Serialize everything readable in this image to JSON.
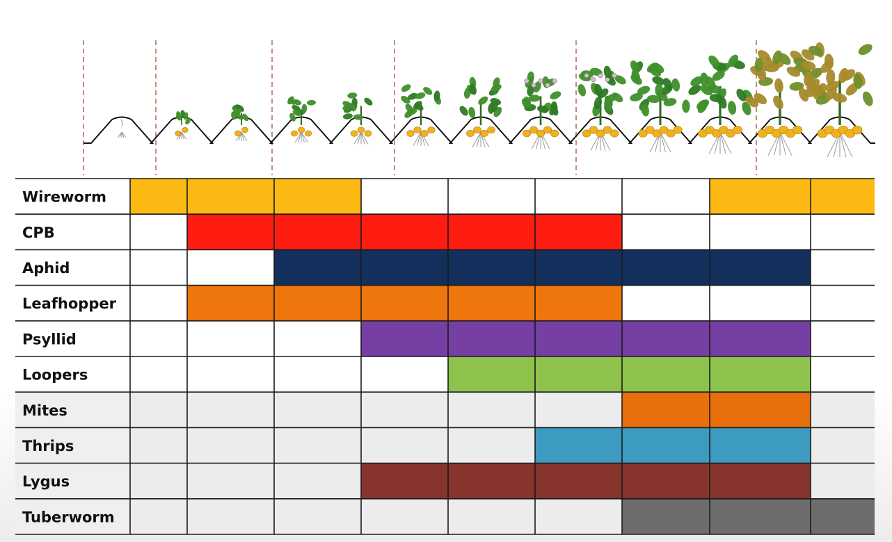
{
  "chart_data": {
    "type": "table",
    "pests": [
      "Wireworm",
      "CPB",
      "Aphid",
      "Leafhopper",
      "Psyllid",
      "Loopers",
      "Mites",
      "Thrips",
      "Lygus",
      "Tuberworm"
    ],
    "stage_columns": 9,
    "activity": [
      {
        "pest": "Wireworm",
        "active_columns": [
          1,
          2,
          3,
          8,
          9
        ],
        "color": "#fdb913"
      },
      {
        "pest": "CPB",
        "active_columns": [
          2,
          3,
          4,
          5,
          6
        ],
        "color": "#ff1c10"
      },
      {
        "pest": "Aphid",
        "active_columns": [
          3,
          4,
          5,
          6,
          7,
          8
        ],
        "color": "#13305c"
      },
      {
        "pest": "Leafhopper",
        "active_columns": [
          2,
          3,
          4,
          5,
          6
        ],
        "color": "#ee760c"
      },
      {
        "pest": "Psyllid",
        "active_columns": [
          4,
          5,
          6,
          7,
          8
        ],
        "color": "#763fa3"
      },
      {
        "pest": "Loopers",
        "active_columns": [
          5,
          6,
          7,
          8
        ],
        "color": "#8dc24c"
      },
      {
        "pest": "Mites",
        "active_columns": [
          7,
          8
        ],
        "color": "#e8700c"
      },
      {
        "pest": "Thrips",
        "active_columns": [
          6,
          7,
          8
        ],
        "color": "#3d9ac1"
      },
      {
        "pest": "Lygus",
        "active_columns": [
          4,
          5,
          6,
          7,
          8
        ],
        "color": "#87342d"
      },
      {
        "pest": "Tuberworm",
        "active_columns": [
          7,
          8,
          9
        ],
        "color": "#6d6d6d"
      }
    ],
    "title": "",
    "xlabel": "",
    "ylabel": ""
  },
  "illustration": {
    "description_icon": "potato-growth-stages-icon",
    "foliage_color": "#3f8f2a",
    "senescent_color": "#a88a2c",
    "tuber_color": "#f0b21c",
    "stage_divider_color": "#c98a7a"
  }
}
